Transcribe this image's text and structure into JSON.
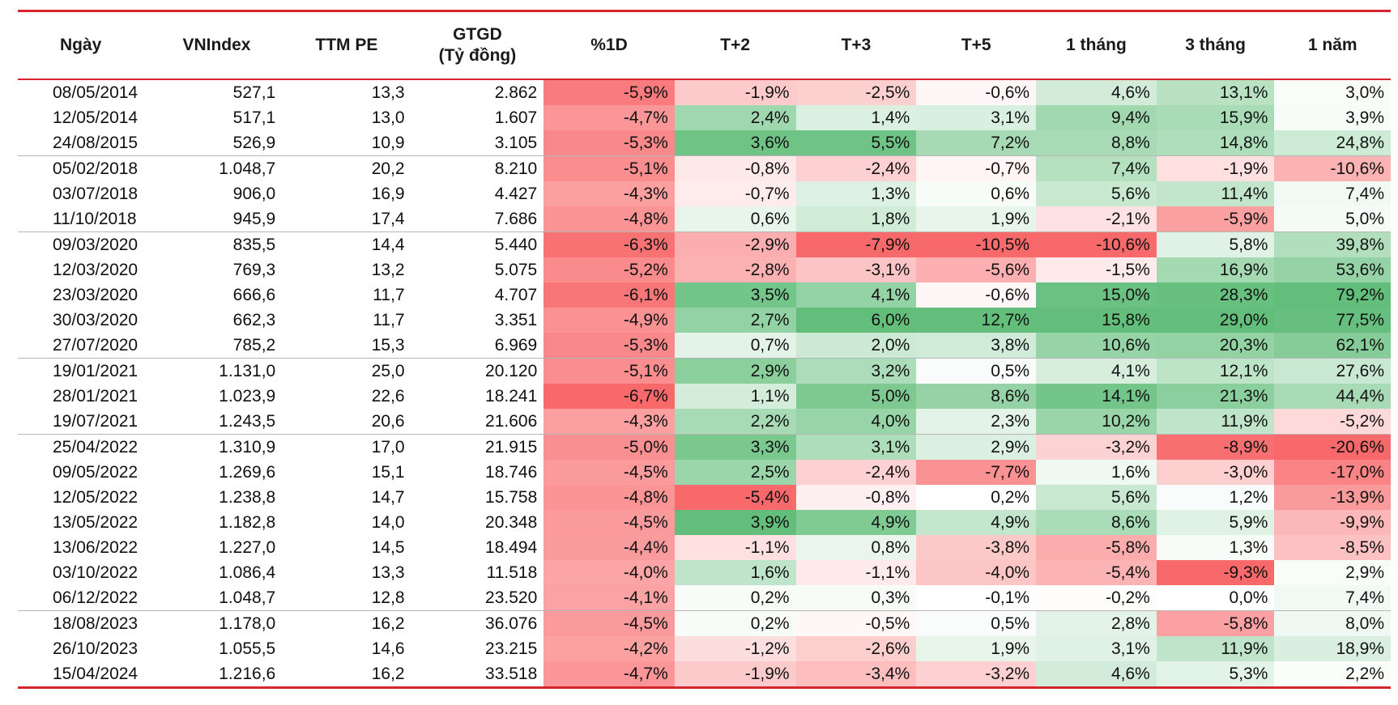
{
  "columns": [
    "Ngày",
    "VNIndex",
    "TTM PE",
    "GTGD\n(Tỷ đồng)",
    "%1D",
    "T+2",
    "T+3",
    "T+5",
    "1 tháng",
    "3 tháng",
    "1 năm"
  ],
  "rows": [
    [
      "08/05/2014",
      "527,1",
      "13,3",
      "2.862",
      "-5,9%",
      "-1,9%",
      "-2,5%",
      "-0,6%",
      "4,6%",
      "13,1%",
      "3,0%"
    ],
    [
      "12/05/2014",
      "517,1",
      "13,0",
      "1.607",
      "-4,7%",
      "2,4%",
      "1,4%",
      "3,1%",
      "9,4%",
      "15,9%",
      "3,9%"
    ],
    [
      "24/08/2015",
      "526,9",
      "10,9",
      "3.105",
      "-5,3%",
      "3,6%",
      "5,5%",
      "7,2%",
      "8,8%",
      "14,8%",
      "24,8%"
    ],
    [
      "05/02/2018",
      "1.048,7",
      "20,2",
      "8.210",
      "-5,1%",
      "-0,8%",
      "-2,4%",
      "-0,7%",
      "7,4%",
      "-1,9%",
      "-10,6%"
    ],
    [
      "03/07/2018",
      "906,0",
      "16,9",
      "4.427",
      "-4,3%",
      "-0,7%",
      "1,3%",
      "0,6%",
      "5,6%",
      "11,4%",
      "7,4%"
    ],
    [
      "11/10/2018",
      "945,9",
      "17,4",
      "7.686",
      "-4,8%",
      "0,6%",
      "1,8%",
      "1,9%",
      "-2,1%",
      "-5,9%",
      "5,0%"
    ],
    [
      "09/03/2020",
      "835,5",
      "14,4",
      "5.440",
      "-6,3%",
      "-2,9%",
      "-7,9%",
      "-10,5%",
      "-10,6%",
      "5,8%",
      "39,8%"
    ],
    [
      "12/03/2020",
      "769,3",
      "13,2",
      "5.075",
      "-5,2%",
      "-2,8%",
      "-3,1%",
      "-5,6%",
      "-1,5%",
      "16,9%",
      "53,6%"
    ],
    [
      "23/03/2020",
      "666,6",
      "11,7",
      "4.707",
      "-6,1%",
      "3,5%",
      "4,1%",
      "-0,6%",
      "15,0%",
      "28,3%",
      "79,2%"
    ],
    [
      "30/03/2020",
      "662,3",
      "11,7",
      "3.351",
      "-4,9%",
      "2,7%",
      "6,0%",
      "12,7%",
      "15,8%",
      "29,0%",
      "77,5%"
    ],
    [
      "27/07/2020",
      "785,2",
      "15,3",
      "6.969",
      "-5,3%",
      "0,7%",
      "2,0%",
      "3,8%",
      "10,6%",
      "20,3%",
      "62,1%"
    ],
    [
      "19/01/2021",
      "1.131,0",
      "25,0",
      "20.120",
      "-5,1%",
      "2,9%",
      "3,2%",
      "0,5%",
      "4,1%",
      "12,1%",
      "27,6%"
    ],
    [
      "28/01/2021",
      "1.023,9",
      "22,6",
      "18.241",
      "-6,7%",
      "1,1%",
      "5,0%",
      "8,6%",
      "14,1%",
      "21,3%",
      "44,4%"
    ],
    [
      "19/07/2021",
      "1.243,5",
      "20,6",
      "21.606",
      "-4,3%",
      "2,2%",
      "4,0%",
      "2,3%",
      "10,2%",
      "11,9%",
      "-5,2%"
    ],
    [
      "25/04/2022",
      "1.310,9",
      "17,0",
      "21.915",
      "-5,0%",
      "3,3%",
      "3,1%",
      "2,9%",
      "-3,2%",
      "-8,9%",
      "-20,6%"
    ],
    [
      "09/05/2022",
      "1.269,6",
      "15,1",
      "18.746",
      "-4,5%",
      "2,5%",
      "-2,4%",
      "-7,7%",
      "1,6%",
      "-3,0%",
      "-17,0%"
    ],
    [
      "12/05/2022",
      "1.238,8",
      "14,7",
      "15.758",
      "-4,8%",
      "-5,4%",
      "-0,8%",
      "0,2%",
      "5,6%",
      "1,2%",
      "-13,9%"
    ],
    [
      "13/05/2022",
      "1.182,8",
      "14,0",
      "20.348",
      "-4,5%",
      "3,9%",
      "4,9%",
      "4,9%",
      "8,6%",
      "5,9%",
      "-9,9%"
    ],
    [
      "13/06/2022",
      "1.227,0",
      "14,5",
      "18.494",
      "-4,4%",
      "-1,1%",
      "0,8%",
      "-3,8%",
      "-5,8%",
      "1,3%",
      "-8,5%"
    ],
    [
      "03/10/2022",
      "1.086,4",
      "13,3",
      "11.518",
      "-4,0%",
      "1,6%",
      "-1,1%",
      "-4,0%",
      "-5,4%",
      "-9,3%",
      "2,9%"
    ],
    [
      "06/12/2022",
      "1.048,7",
      "12,8",
      "23.520",
      "-4,1%",
      "0,2%",
      "0,3%",
      "-0,1%",
      "-0,2%",
      "0,0%",
      "7,4%"
    ],
    [
      "18/08/2023",
      "1.178,0",
      "16,2",
      "36.076",
      "-4,5%",
      "0,2%",
      "-0,5%",
      "0,5%",
      "2,8%",
      "-5,8%",
      "8,0%"
    ],
    [
      "26/10/2023",
      "1.055,5",
      "14,6",
      "23.215",
      "-4,2%",
      "-1,2%",
      "-2,6%",
      "1,9%",
      "3,1%",
      "11,9%",
      "18,9%"
    ],
    [
      "15/04/2024",
      "1.216,6",
      "16,2",
      "33.518",
      "-4,7%",
      "-1,9%",
      "-3,4%",
      "-3,2%",
      "4,6%",
      "5,3%",
      "2,2%"
    ]
  ],
  "year_group_start_rows": [
    3,
    6,
    11,
    14,
    21
  ],
  "heat_colors": {
    "negative": "#f8696b",
    "neutral": "#ffffff",
    "positive": "#63be7b"
  },
  "accent_color": "#d6252e"
}
